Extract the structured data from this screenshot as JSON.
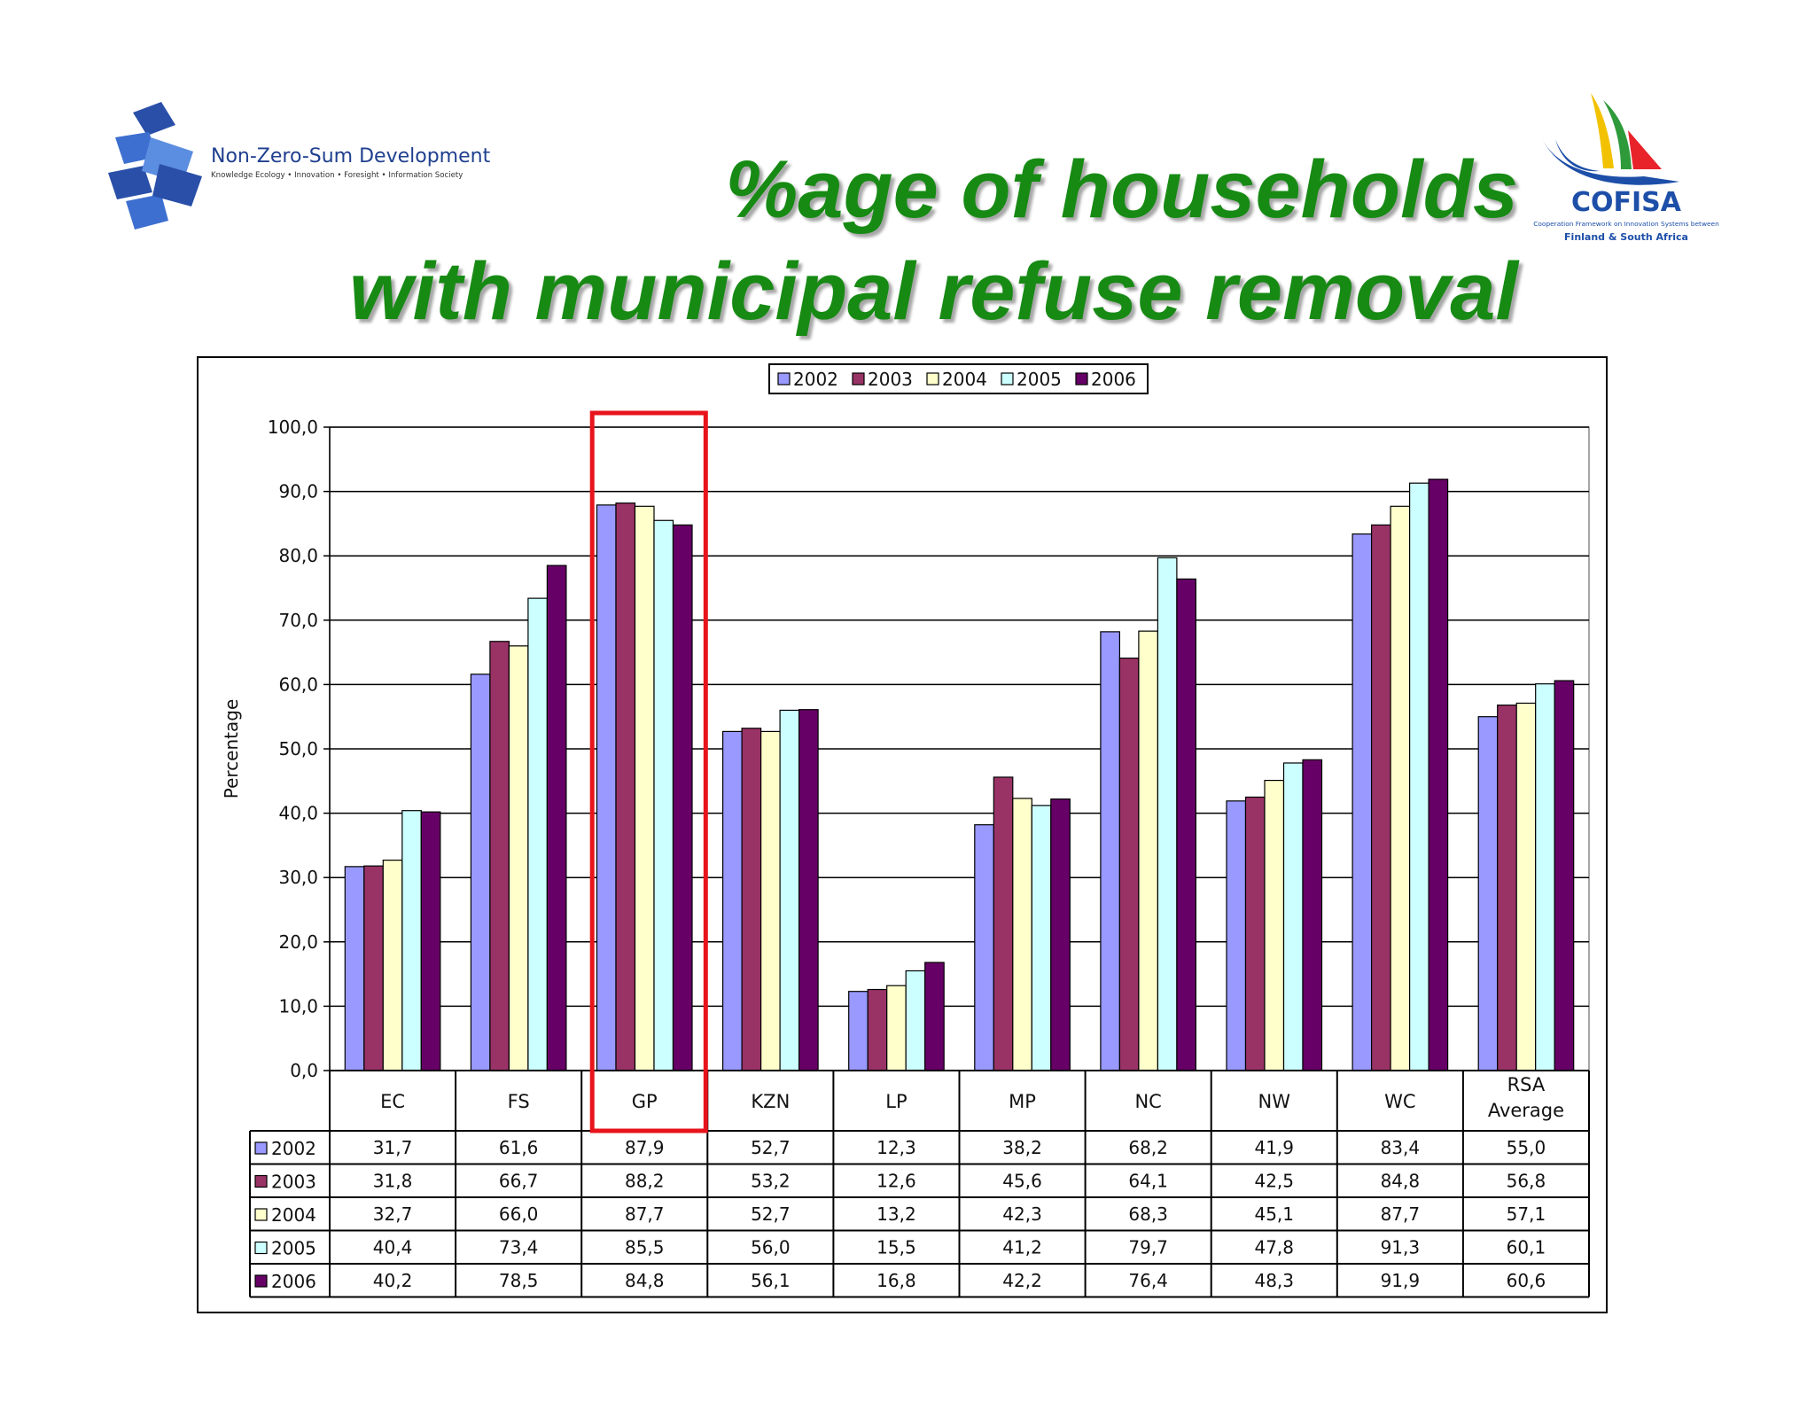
{
  "header": {
    "title_line1": "%age of households",
    "title_line2": "with municipal refuse removal",
    "left_logo": {
      "name": "Non-Zero-Sum Development",
      "tagline": "Knowledge Ecology • Innovation • Foresight • Information Society"
    },
    "right_logo": {
      "name": "COFISA",
      "tagline": "Cooperation Framework on Innovation Systems between",
      "tagline2": "Finland & South Africa"
    }
  },
  "colors": {
    "title": "#178a14",
    "highlight": "#e8141b",
    "series": [
      "#9999ff",
      "#993366",
      "#ffffcc",
      "#ccffff",
      "#660066"
    ]
  },
  "chart_data": {
    "type": "bar",
    "categories": [
      "EC",
      "FS",
      "GP",
      "KZN",
      "LP",
      "MP",
      "NC",
      "NW",
      "WC",
      "RSA Average"
    ],
    "category_labels": [
      [
        "EC"
      ],
      [
        "FS"
      ],
      [
        "GP"
      ],
      [
        "KZN"
      ],
      [
        "LP"
      ],
      [
        "MP"
      ],
      [
        "NC"
      ],
      [
        "NW"
      ],
      [
        "WC"
      ],
      [
        "RSA",
        "Average"
      ]
    ],
    "series": [
      {
        "name": "2002",
        "values": [
          31.7,
          61.6,
          87.9,
          52.7,
          12.3,
          38.2,
          68.2,
          41.9,
          83.4,
          55.0
        ],
        "labels": [
          "31,7",
          "61,6",
          "87,9",
          "52,7",
          "12,3",
          "38,2",
          "68,2",
          "41,9",
          "83,4",
          "55,0"
        ]
      },
      {
        "name": "2003",
        "values": [
          31.8,
          66.7,
          88.2,
          53.2,
          12.6,
          45.6,
          64.1,
          42.5,
          84.8,
          56.8
        ],
        "labels": [
          "31,8",
          "66,7",
          "88,2",
          "53,2",
          "12,6",
          "45,6",
          "64,1",
          "42,5",
          "84,8",
          "56,8"
        ]
      },
      {
        "name": "2004",
        "values": [
          32.7,
          66.0,
          87.7,
          52.7,
          13.2,
          42.3,
          68.3,
          45.1,
          87.7,
          57.1
        ],
        "labels": [
          "32,7",
          "66,0",
          "87,7",
          "52,7",
          "13,2",
          "42,3",
          "68,3",
          "45,1",
          "87,7",
          "57,1"
        ]
      },
      {
        "name": "2005",
        "values": [
          40.4,
          73.4,
          85.5,
          56.0,
          15.5,
          41.2,
          79.7,
          47.8,
          91.3,
          60.1
        ],
        "labels": [
          "40,4",
          "73,4",
          "85,5",
          "56,0",
          "15,5",
          "41,2",
          "79,7",
          "47,8",
          "91,3",
          "60,1"
        ]
      },
      {
        "name": "2006",
        "values": [
          40.2,
          78.5,
          84.8,
          56.1,
          16.8,
          42.2,
          76.4,
          48.3,
          91.9,
          60.6
        ],
        "labels": [
          "40,2",
          "78,5",
          "84,8",
          "56,1",
          "16,8",
          "42,2",
          "76,4",
          "48,3",
          "91,9",
          "60,6"
        ]
      }
    ],
    "ylabel": "Percentage",
    "ylim": [
      0,
      100
    ],
    "yticks": [
      "0,0",
      "10,0",
      "20,0",
      "30,0",
      "40,0",
      "50,0",
      "60,0",
      "70,0",
      "80,0",
      "90,0",
      "100,0"
    ],
    "grid": true,
    "legend_position": "top",
    "data_table": true,
    "highlighted_category": "GP"
  }
}
